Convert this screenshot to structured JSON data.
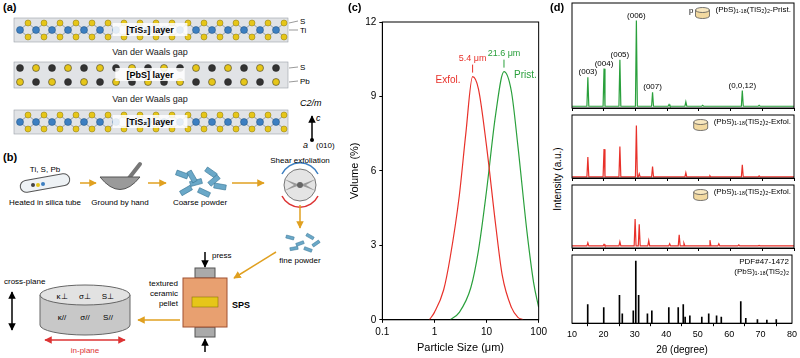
{
  "panel_labels": [
    "(a)",
    "(b)",
    "(c)",
    "(d)"
  ],
  "structure": {
    "layers": [
      "[TiS₂] layer",
      "Van der Waals gap",
      "[PbS] layer",
      "Van der Waals gap",
      "[TiS₂] layer"
    ],
    "atoms": [
      "S",
      "Ti",
      "S",
      "Pb"
    ],
    "axes": [
      "a",
      "c"
    ],
    "direction": "(010)",
    "space_group": "C2/m"
  },
  "process": {
    "elements": "Ti, S, Pb",
    "steps": [
      "Heated in silica tube",
      "Ground by hand",
      "Coarse powder",
      "Shear exfoliation",
      "fine powder",
      "SPS"
    ],
    "press": "press",
    "pellet": "textured ceramic pellet",
    "directions": [
      "cross-plane",
      "in-plane"
    ],
    "properties_parallel": [
      "κ//",
      "σ//",
      "S//"
    ],
    "properties_perpendicular": [
      "κ⊥",
      "σ⊥",
      "S⊥"
    ]
  },
  "chart_data": [
    {
      "type": "line",
      "x_label": "Particle Size (μm)",
      "y_label": "Volume (%)",
      "log": "x",
      "xlim": [
        0.1,
        100
      ],
      "xticks": [
        0.1,
        1,
        10,
        100
      ],
      "ylim": [
        0,
        12
      ],
      "yticks": [
        0,
        3,
        6,
        9,
        12
      ],
      "grid": false,
      "series": [
        {
          "name": "Exfol.",
          "color": "#e8312a",
          "x": [
            0.8,
            1,
            1.5,
            2,
            3,
            4,
            5.4,
            7,
            10,
            15,
            20,
            30,
            40,
            50
          ],
          "values": [
            0,
            0.3,
            1.2,
            2.5,
            5,
            7.5,
            9.8,
            9.3,
            7,
            3.8,
            1.8,
            0.5,
            0.1,
            0
          ]
        },
        {
          "name": "Prist.",
          "color": "#2aa03c",
          "x": [
            2,
            3,
            5,
            7,
            10,
            15,
            21.6,
            30,
            40,
            60,
            80,
            100
          ],
          "values": [
            0,
            0.3,
            1.3,
            2.8,
            5.2,
            8.3,
            10,
            9.2,
            7,
            3.5,
            1.5,
            0.5
          ]
        }
      ],
      "annotations": [
        {
          "text": "5.4 μm",
          "x": 5.4
        },
        {
          "text": "21.6 μm",
          "x": 21.6
        }
      ]
    },
    {
      "type": "line",
      "title": "(PbS)₁.₁₈(TiS₂)₂-Prist.",
      "annotations": [
        {
          "text": "p"
        }
      ],
      "y_label": "Intensity (a.u.)",
      "xlim": [
        10,
        80
      ],
      "xticks": [
        10,
        20,
        30,
        40,
        50,
        60,
        70,
        80
      ],
      "ylim": [
        0,
        120
      ],
      "yticks": [],
      "grid": false,
      "tick_labels": false,
      "series": [
        {
          "color": "#2aa03c",
          "x": [
            10,
            14.7,
            15.0,
            15.3,
            19.8,
            20.1,
            20.4,
            24.8,
            25.1,
            25.4,
            30.0,
            30.3,
            30.6,
            35.1,
            35.4,
            35.7,
            40.3,
            40.6,
            40.9,
            45.6,
            45.9,
            46.2,
            50.9,
            51.2,
            51.5,
            63.4,
            63.7,
            64.0,
            68.7,
            69.0,
            69.3,
            80
          ],
          "values": [
            2,
            2,
            35,
            2,
            2,
            45,
            2,
            2,
            55,
            2,
            2,
            100,
            2,
            2,
            18,
            2,
            2,
            4,
            2,
            2,
            7,
            2,
            2,
            3,
            2,
            2,
            20,
            2,
            2,
            3,
            2,
            2
          ]
        }
      ],
      "peak_labels": [
        {
          "x": 15.0,
          "label": "(003)"
        },
        {
          "x": 20.1,
          "label": "(004)"
        },
        {
          "x": 25.1,
          "label": "(005)"
        },
        {
          "x": 30.3,
          "label": "(006)"
        },
        {
          "x": 35.4,
          "label": "(007)"
        },
        {
          "x": 63.7,
          "label": "(0,0,12)"
        }
      ]
    },
    {
      "type": "line",
      "title": "(PbS)₁.₁₈(TiS₂)₂-Exfol.",
      "xlim": [
        10,
        80
      ],
      "xticks": [
        10,
        20,
        30,
        40,
        50,
        60,
        70,
        80
      ],
      "ylim": [
        0,
        120
      ],
      "yticks": [],
      "grid": false,
      "tick_labels": false,
      "series": [
        {
          "color": "#e8312a",
          "x": [
            10,
            14.7,
            15.0,
            15.3,
            19.8,
            20.1,
            20.4,
            24.8,
            25.1,
            25.4,
            30.0,
            30.3,
            30.6,
            30.9,
            31.2,
            31.5,
            35.1,
            35.4,
            35.7,
            45.6,
            45.9,
            46.2,
            53.2,
            53.5,
            53.8,
            63.4,
            63.7,
            64.0,
            68.7,
            69.0,
            69.3,
            80
          ],
          "values": [
            2,
            2,
            40,
            2,
            2,
            55,
            2,
            2,
            60,
            2,
            2,
            100,
            2,
            2,
            8,
            2,
            2,
            22,
            2,
            2,
            10,
            2,
            2,
            4,
            2,
            2,
            25,
            2,
            2,
            4,
            2,
            2
          ]
        }
      ]
    },
    {
      "type": "line",
      "title": "(PbS)₁.₁₈(TiS₂)₂-Exfol.",
      "xlim": [
        10,
        80
      ],
      "xticks": [
        10,
        20,
        30,
        40,
        50,
        60,
        70,
        80
      ],
      "ylim": [
        0,
        120
      ],
      "yticks": [],
      "grid": false,
      "tick_labels": false,
      "series": [
        {
          "color": "#e8312a",
          "x": [
            10,
            14.7,
            15.0,
            15.3,
            19.8,
            20.1,
            20.4,
            24.8,
            25.1,
            25.4,
            29.6,
            29.9,
            30.2,
            30.9,
            31.2,
            31.5,
            33.9,
            34.2,
            34.5,
            40.5,
            40.8,
            41.1,
            43.5,
            43.8,
            44.1,
            45.0,
            45.3,
            45.6,
            53.2,
            53.5,
            53.8,
            56.0,
            56.3,
            56.6,
            62.3,
            62.6,
            62.9,
            68.7,
            69.0,
            69.3,
            80
          ],
          "values": [
            4,
            4,
            10,
            4,
            4,
            7,
            4,
            4,
            12,
            4,
            4,
            55,
            4,
            4,
            45,
            4,
            4,
            14,
            4,
            4,
            8,
            4,
            4,
            25,
            4,
            4,
            9,
            4,
            4,
            15,
            4,
            4,
            8,
            4,
            4,
            6,
            4,
            4,
            5,
            4,
            4
          ]
        }
      ]
    },
    {
      "type": "bar",
      "title": "PDF#47-1472",
      "subtitle": "(PbS)₁.₁₈(TiS₂)₂",
      "x_label": "2θ (degree)",
      "xlim": [
        10,
        80
      ],
      "xticks": [
        10,
        20,
        30,
        40,
        50,
        60,
        70,
        80
      ],
      "ylim": [
        0,
        110
      ],
      "yticks": [],
      "grid": false,
      "tick_labels": "x",
      "series": [
        {
          "color": "#000000",
          "x": [
            15.0,
            20.1,
            25.1,
            26.0,
            29.5,
            30.3,
            31.2,
            34.0,
            35.4,
            40.8,
            43.8,
            45.4,
            46.0,
            47.5,
            51.3,
            53.5,
            56.0,
            57.5,
            63.7,
            65.3,
            69.0,
            72.0,
            75.0
          ],
          "values": [
            30,
            25,
            45,
            15,
            20,
            100,
            45,
            15,
            20,
            25,
            25,
            30,
            10,
            12,
            10,
            15,
            12,
            10,
            35,
            8,
            6,
            5,
            6
          ]
        }
      ]
    }
  ]
}
